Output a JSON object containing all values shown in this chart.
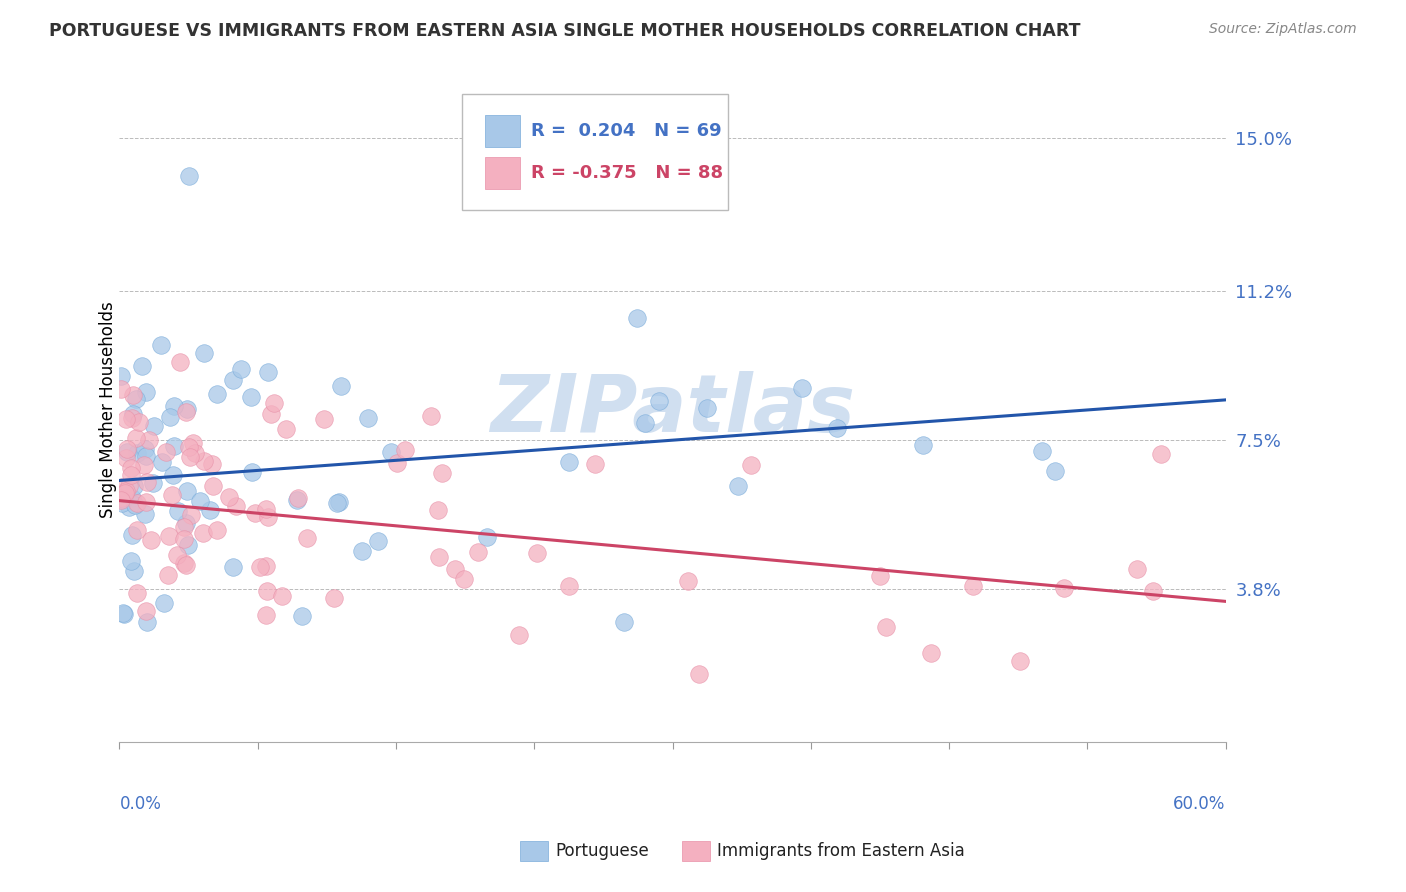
{
  "title": "PORTUGUESE VS IMMIGRANTS FROM EASTERN ASIA SINGLE MOTHER HOUSEHOLDS CORRELATION CHART",
  "source": "Source: ZipAtlas.com",
  "ylabel": "Single Mother Households",
  "yticks": [
    0.038,
    0.075,
    0.112,
    0.15
  ],
  "ytick_labels": [
    "3.8%",
    "7.5%",
    "11.2%",
    "15.0%"
  ],
  "xlim": [
    0.0,
    0.6
  ],
  "ylim": [
    0.0,
    0.165
  ],
  "blue_R": 0.204,
  "blue_N": 69,
  "pink_R": -0.375,
  "pink_N": 88,
  "blue_color": "#a8c8e8",
  "pink_color": "#f4b0c0",
  "blue_line_color": "#2255aa",
  "pink_line_color": "#cc4466",
  "watermark_color": "#d0dff0",
  "legend_label_blue": "Portuguese",
  "legend_label_pink": "Immigrants from Eastern Asia",
  "blue_line_start_y": 0.065,
  "blue_line_end_y": 0.085,
  "pink_line_start_y": 0.06,
  "pink_line_end_y": 0.035
}
